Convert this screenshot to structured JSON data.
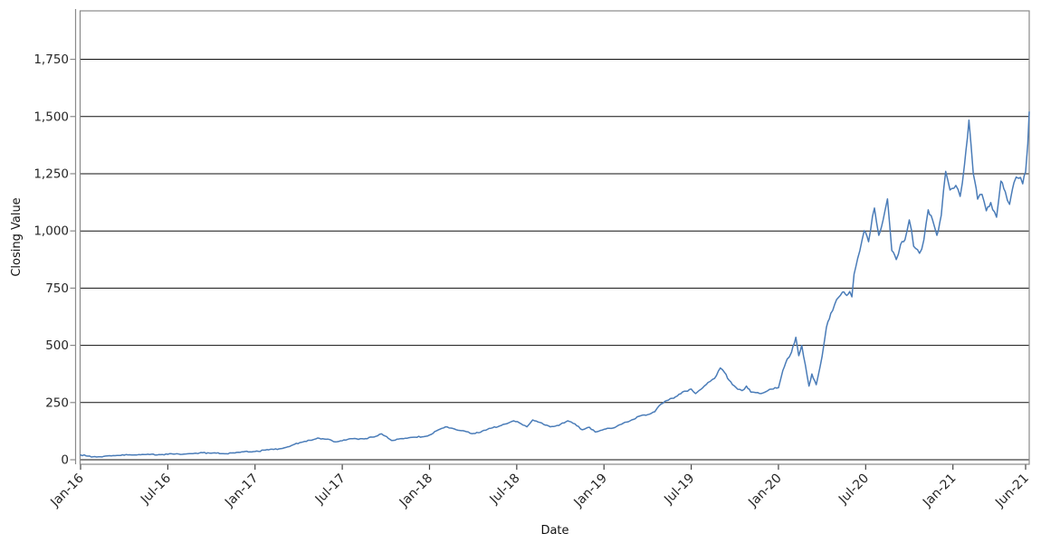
{
  "figure": {
    "background": "#ffffff",
    "x_axis_title": "Date",
    "y_axis_title": "Closing Value"
  },
  "colors": {
    "line": "#4a7cb8",
    "gridline": "#111111",
    "frame": "#8a8a8a",
    "y_spine": "#8a8a8a",
    "y_tick": "#8a8a8a",
    "x_tick": "#444444",
    "tick_text": "#262626"
  },
  "chart_data": {
    "type": "line",
    "title": "",
    "xlabel": "Date",
    "ylabel": "Closing Value",
    "legend": "none",
    "grid": "horizontal black gridlines at every y tick",
    "x_unit": "months since Jan-2016",
    "xlim_months": [
      0,
      65.3
    ],
    "ylim": [
      -20,
      1962
    ],
    "y_ticks": [
      {
        "value": 0,
        "label": "0"
      },
      {
        "value": 250,
        "label": "250"
      },
      {
        "value": 500,
        "label": "500"
      },
      {
        "value": 750,
        "label": "750"
      },
      {
        "value": 1000,
        "label": "1,000"
      },
      {
        "value": 1250,
        "label": "1,250"
      },
      {
        "value": 1500,
        "label": "1,500"
      },
      {
        "value": 1750,
        "label": "1,750"
      }
    ],
    "x_ticks": [
      {
        "month": 0,
        "label": "Jan-16"
      },
      {
        "month": 6,
        "label": "Jul-16"
      },
      {
        "month": 12,
        "label": "Jan-17"
      },
      {
        "month": 18,
        "label": "Jul-17"
      },
      {
        "month": 24,
        "label": "Jan-18"
      },
      {
        "month": 30,
        "label": "Jul-18"
      },
      {
        "month": 36,
        "label": "Jan-19"
      },
      {
        "month": 42,
        "label": "Jul-19"
      },
      {
        "month": 48,
        "label": "Jan-20"
      },
      {
        "month": 54,
        "label": "Jul-20"
      },
      {
        "month": 60,
        "label": "Jan-21"
      },
      {
        "month": 65,
        "label": "Jun-21"
      }
    ],
    "series": [
      {
        "name": "Closing Value",
        "color": "#4a7cb8",
        "points_month_value": [
          [
            0,
            21
          ],
          [
            0.5,
            16
          ],
          [
            1.1,
            12
          ],
          [
            1.6,
            15
          ],
          [
            2.5,
            19
          ],
          [
            3.5,
            21
          ],
          [
            4.5,
            23
          ],
          [
            5.5,
            22
          ],
          [
            6.5,
            25
          ],
          [
            7.5,
            27
          ],
          [
            8.4,
            31
          ],
          [
            9,
            29
          ],
          [
            9.8,
            27
          ],
          [
            10.5,
            30
          ],
          [
            11.2,
            35
          ],
          [
            12,
            36
          ],
          [
            12.7,
            42
          ],
          [
            13.3,
            45
          ],
          [
            14,
            52
          ],
          [
            14.5,
            62
          ],
          [
            15.3,
            78
          ],
          [
            16,
            88
          ],
          [
            16.3,
            95
          ],
          [
            17,
            90
          ],
          [
            17.4,
            79
          ],
          [
            18,
            83
          ],
          [
            18.6,
            92
          ],
          [
            19.5,
            91
          ],
          [
            20.3,
            102
          ],
          [
            20.7,
            113
          ],
          [
            21.4,
            84
          ],
          [
            22,
            92
          ],
          [
            22.8,
            98
          ],
          [
            23.6,
            101
          ],
          [
            24,
            108
          ],
          [
            24.6,
            130
          ],
          [
            25.1,
            144
          ],
          [
            25.6,
            137
          ],
          [
            26.3,
            127
          ],
          [
            26.9,
            114
          ],
          [
            27.5,
            120
          ],
          [
            28.1,
            137
          ],
          [
            28.7,
            144
          ],
          [
            29.3,
            157
          ],
          [
            29.8,
            170
          ],
          [
            30.3,
            157
          ],
          [
            30.7,
            144
          ],
          [
            31.1,
            174
          ],
          [
            31.6,
            163
          ],
          [
            32.3,
            144
          ],
          [
            32.9,
            150
          ],
          [
            33.5,
            170
          ],
          [
            34,
            157
          ],
          [
            34.5,
            131
          ],
          [
            35,
            142
          ],
          [
            35.4,
            121
          ],
          [
            36,
            133
          ],
          [
            36.5,
            137
          ],
          [
            37.2,
            155
          ],
          [
            37.8,
            170
          ],
          [
            38.4,
            190
          ],
          [
            39,
            197
          ],
          [
            39.5,
            210
          ],
          [
            39.8,
            236
          ],
          [
            40.2,
            256
          ],
          [
            40.8,
            269
          ],
          [
            41.4,
            296
          ],
          [
            42,
            309
          ],
          [
            42.3,
            289
          ],
          [
            42.9,
            322
          ],
          [
            43.3,
            342
          ],
          [
            43.6,
            355
          ],
          [
            44,
            401
          ],
          [
            44.3,
            381
          ],
          [
            44.6,
            348
          ],
          [
            45.2,
            308
          ],
          [
            45.5,
            302
          ],
          [
            45.8,
            322
          ],
          [
            46.1,
            296
          ],
          [
            46.8,
            289
          ],
          [
            47.4,
            308
          ],
          [
            48,
            315
          ],
          [
            48.3,
            390
          ],
          [
            48.6,
            440
          ],
          [
            48.9,
            470
          ],
          [
            49.2,
            535
          ],
          [
            49.4,
            455
          ],
          [
            49.6,
            500
          ],
          [
            50.1,
            322
          ],
          [
            50.3,
            375
          ],
          [
            50.6,
            328
          ],
          [
            51,
            450
          ],
          [
            51.3,
            580
          ],
          [
            51.6,
            640
          ],
          [
            52,
            700
          ],
          [
            52.4,
            732
          ],
          [
            52.7,
            718
          ],
          [
            52.9,
            735
          ],
          [
            53.05,
            712
          ],
          [
            53.2,
            811
          ],
          [
            53.45,
            880
          ],
          [
            53.6,
            914
          ],
          [
            53.9,
            1001
          ],
          [
            54.2,
            953
          ],
          [
            54.6,
            1100
          ],
          [
            54.9,
            981
          ],
          [
            55.2,
            1048
          ],
          [
            55.5,
            1140
          ],
          [
            55.8,
            914
          ],
          [
            56.1,
            875
          ],
          [
            56.4,
            941
          ],
          [
            56.7,
            961
          ],
          [
            57,
            1048
          ],
          [
            57.3,
            933
          ],
          [
            57.7,
            902
          ],
          [
            58,
            961
          ],
          [
            58.3,
            1092
          ],
          [
            58.6,
            1048
          ],
          [
            58.9,
            981
          ],
          [
            59.2,
            1068
          ],
          [
            59.5,
            1260
          ],
          [
            59.8,
            1179
          ],
          [
            60.2,
            1199
          ],
          [
            60.5,
            1151
          ],
          [
            60.8,
            1290
          ],
          [
            61.1,
            1484
          ],
          [
            61.4,
            1250
          ],
          [
            61.7,
            1139
          ],
          [
            62,
            1160
          ],
          [
            62.3,
            1088
          ],
          [
            62.6,
            1124
          ],
          [
            63,
            1060
          ],
          [
            63.3,
            1218
          ],
          [
            63.6,
            1172
          ],
          [
            63.9,
            1116
          ],
          [
            64.2,
            1212
          ],
          [
            64.5,
            1230
          ],
          [
            64.8,
            1206
          ],
          [
            65,
            1258
          ],
          [
            65.15,
            1380
          ],
          [
            65.3,
            1520
          ]
        ]
      }
    ]
  }
}
